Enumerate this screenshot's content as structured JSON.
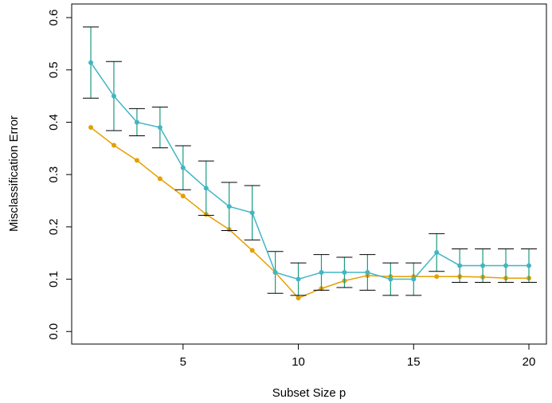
{
  "chart_data": {
    "type": "line",
    "x_label": "Subset Size p",
    "y_label": "Misclassification Error",
    "x": [
      1,
      2,
      3,
      4,
      5,
      6,
      7,
      8,
      9,
      10,
      11,
      12,
      13,
      14,
      15,
      16,
      17,
      18,
      19,
      20
    ],
    "series": [
      {
        "color": "#e69f00",
        "values": [
          0.39,
          0.356,
          0.327,
          0.292,
          0.259,
          0.224,
          0.195,
          0.155,
          0.113,
          0.064,
          0.082,
          0.097,
          0.107,
          0.105,
          0.105,
          0.105,
          0.105,
          0.104,
          0.102,
          0.102
        ]
      },
      {
        "color": "#41b6c4",
        "error_color": "#1a9b7f",
        "values": [
          0.514,
          0.45,
          0.4,
          0.39,
          0.313,
          0.274,
          0.239,
          0.227,
          0.113,
          0.1,
          0.113,
          0.113,
          0.113,
          0.1,
          0.1,
          0.151,
          0.126,
          0.126,
          0.126,
          0.126
        ],
        "errors": [
          0.068,
          0.066,
          0.026,
          0.039,
          0.042,
          0.052,
          0.046,
          0.052,
          0.04,
          0.031,
          0.034,
          0.029,
          0.034,
          0.031,
          0.031,
          0.036,
          0.032,
          0.032,
          0.032,
          0.032
        ]
      }
    ],
    "xlim": [
      0.17,
      20.76
    ],
    "ylim": [
      -0.024,
      0.626
    ],
    "xticks": [
      5,
      10,
      15,
      20
    ],
    "yticks": [
      {
        "value": 0,
        "label": "0.0"
      },
      0.1,
      0.2,
      0.3,
      0.4,
      0.5,
      0.6
    ]
  }
}
